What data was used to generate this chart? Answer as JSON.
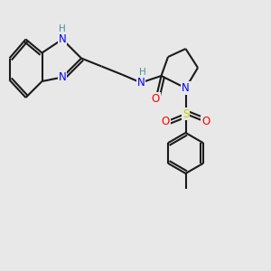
{
  "background_color": "#e8e8e8",
  "bond_color": "#1a1a1a",
  "bond_width": 1.5,
  "atom_colors": {
    "N": "#0000ff",
    "O": "#ff0000",
    "S": "#cccc00",
    "H_teal": "#4a9090",
    "C": "#1a1a1a"
  },
  "font_size": 8.5,
  "fig_width": 3.0,
  "fig_height": 3.0,
  "dpi": 100,
  "xlim": [
    0,
    10
  ],
  "ylim": [
    0,
    10
  ]
}
